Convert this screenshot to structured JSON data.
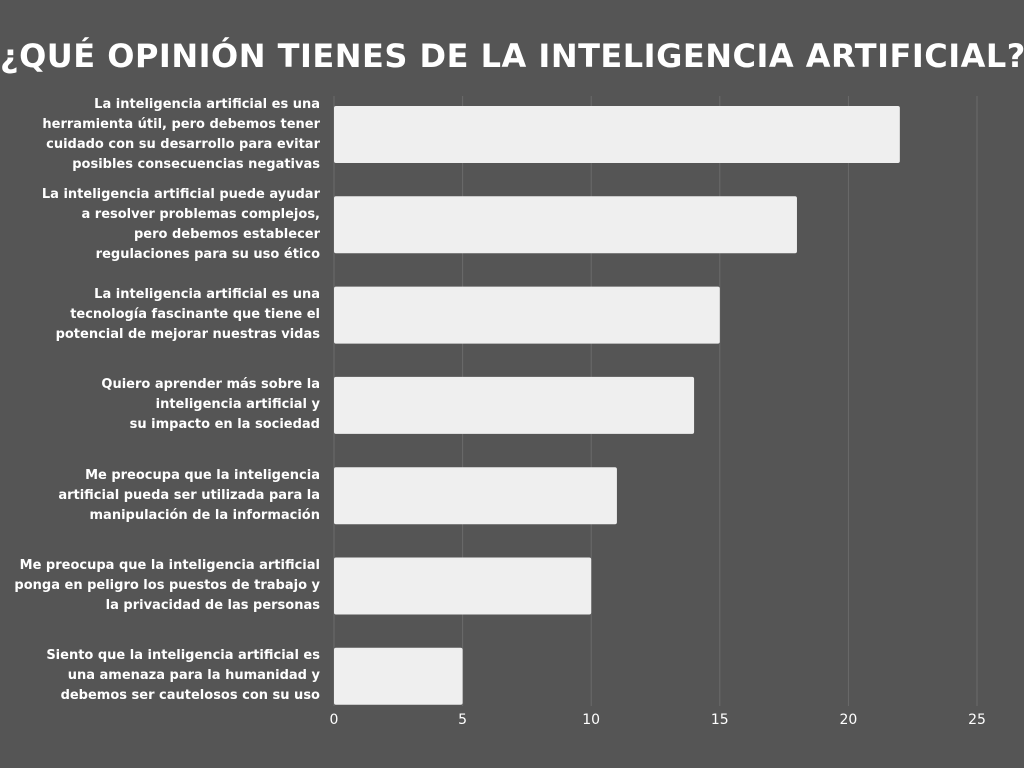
{
  "chart_data": {
    "type": "bar",
    "orientation": "horizontal",
    "title": "¿QUÉ OPINIÓN TIENES DE LA INTELIGENCIA ARTIFICIAL?",
    "categories": [
      "La inteligencia artificial es una\nherramienta útil, pero debemos tener\ncuidado con su desarrollo para evitar\nposibles consecuencias negativas",
      "La inteligencia artificial puede ayudar\na resolver problemas complejos, \npero debemos establecer\nregulaciones para su uso ético",
      "La inteligencia artificial es una\ntecnología fascinante que tiene el\npotencial de mejorar nuestras vidas",
      "Quiero aprender más sobre la\ninteligencia artificial y \nsu impacto en la sociedad",
      "Me preocupa que la inteligencia\nartificial pueda ser utilizada para la\nmanipulación de la información",
      "Me preocupa que la inteligencia artificial\nponga en peligro los puestos de trabajo y\nla privacidad de las personas",
      "Siento que la inteligencia artificial es\nuna amenaza para la humanidad y\ndebemos ser cautelosos con su uso"
    ],
    "values": [
      22,
      18,
      15,
      14,
      11,
      10,
      5
    ],
    "xlim": [
      0,
      25
    ],
    "x_ticks": [
      "0",
      "5",
      "10",
      "15",
      "20",
      "25"
    ],
    "grid": true,
    "colors": {
      "background": "#555555",
      "bar": "#efefef",
      "grid": "#6a6a6a",
      "text": "#ffffff"
    }
  }
}
